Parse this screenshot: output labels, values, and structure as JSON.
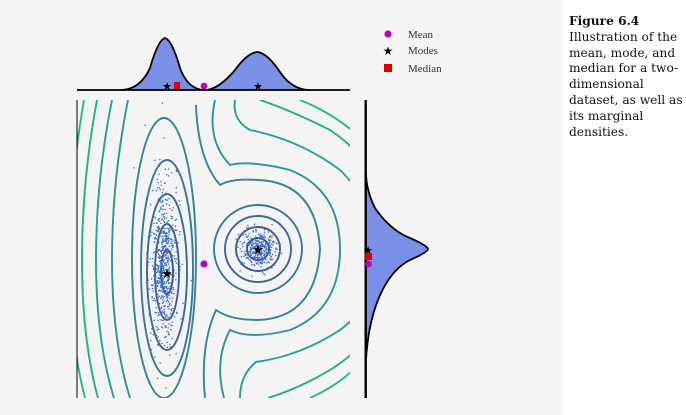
{
  "figure": {
    "label": "Figure 6.4",
    "caption": "Illustration of the mean, mode, and median for a two-dimensional dataset, as well as its marginal densities."
  },
  "legend": {
    "mean_label": "Mean",
    "modes_label": "Modes",
    "median_label": "Median"
  },
  "colors": {
    "mean": "#c000c0",
    "mode": "#000000",
    "median": "#e00000",
    "density_fill": "#7b8fe6",
    "scatter": "#3a6cc8"
  },
  "chart_data": {
    "type": "scatter",
    "title": "",
    "xlabel": "",
    "ylabel": "",
    "grid": false,
    "legend_placement": "top-right",
    "clusters": [
      {
        "center": [
          -3.0,
          -0.5
        ],
        "spread": [
          0.45,
          2.0
        ],
        "orientation": "vertical ellipse"
      },
      {
        "center": [
          0.5,
          0.5
        ],
        "spread": [
          0.5,
          0.5
        ],
        "orientation": "circle"
      }
    ],
    "points": {
      "modes": [
        [
          -3.0,
          -0.7
        ],
        [
          0.5,
          0.5
        ]
      ],
      "mean": [
        -1.6,
        -0.35
      ],
      "median": [
        -2.6,
        0.25
      ]
    },
    "marginal_x": {
      "modes": [
        -3.0,
        0.5
      ],
      "mean": -1.6,
      "median": -2.6,
      "shape": "bimodal"
    },
    "marginal_y": {
      "modes": [
        0.5
      ],
      "mean": -0.35,
      "median": 0.25,
      "shape": "unimodal"
    }
  }
}
